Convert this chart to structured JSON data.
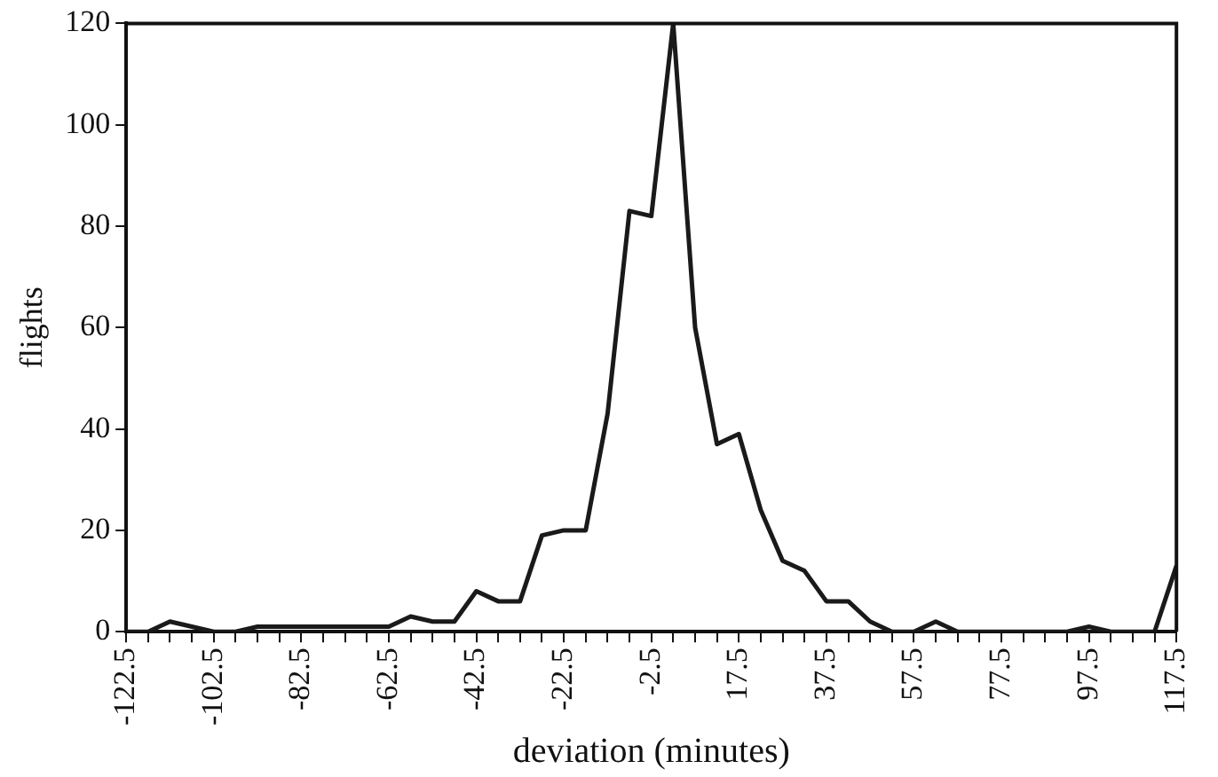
{
  "chart_data": {
    "type": "line",
    "xlabel": "deviation (minutes)",
    "ylabel": "flights",
    "x": [
      -122.5,
      -117.5,
      -112.5,
      -107.5,
      -102.5,
      -97.5,
      -92.5,
      -87.5,
      -82.5,
      -77.5,
      -72.5,
      -67.5,
      -62.5,
      -57.5,
      -52.5,
      -47.5,
      -42.5,
      -37.5,
      -32.5,
      -27.5,
      -22.5,
      -17.5,
      -12.5,
      -7.5,
      -2.5,
      2.5,
      7.5,
      12.5,
      17.5,
      22.5,
      27.5,
      32.5,
      37.5,
      42.5,
      47.5,
      52.5,
      57.5,
      62.5,
      67.5,
      72.5,
      77.5,
      82.5,
      87.5,
      92.5,
      97.5,
      102.5,
      107.5,
      112.5,
      117.5
    ],
    "series": [
      {
        "color": "#1a1a1a",
        "values": [
          0,
          0,
          2,
          1,
          0,
          0,
          1,
          1,
          1,
          1,
          1,
          1,
          1,
          3,
          2,
          2,
          8,
          6,
          6,
          19,
          20,
          20,
          43,
          83,
          82,
          120,
          60,
          37,
          39,
          24,
          14,
          12,
          6,
          6,
          2,
          0,
          0,
          2,
          0,
          0,
          0,
          0,
          0,
          0,
          1,
          0,
          0,
          0,
          13
        ]
      }
    ],
    "xlim": [
      -122.5,
      117.5
    ],
    "xticks": [
      -122.5,
      {
        "value": -117.5,
        "label": null
      },
      {
        "value": -112.5,
        "label": null
      },
      {
        "value": -107.5,
        "label": null
      },
      -102.5,
      {
        "value": -97.5,
        "label": null
      },
      {
        "value": -92.5,
        "label": null
      },
      {
        "value": -87.5,
        "label": null
      },
      -82.5,
      {
        "value": -77.5,
        "label": null
      },
      {
        "value": -72.5,
        "label": null
      },
      {
        "value": -67.5,
        "label": null
      },
      -62.5,
      {
        "value": -57.5,
        "label": null
      },
      {
        "value": -52.5,
        "label": null
      },
      {
        "value": -47.5,
        "label": null
      },
      -42.5,
      {
        "value": -37.5,
        "label": null
      },
      {
        "value": -32.5,
        "label": null
      },
      {
        "value": -27.5,
        "label": null
      },
      -22.5,
      {
        "value": -17.5,
        "label": null
      },
      {
        "value": -12.5,
        "label": null
      },
      {
        "value": -7.5,
        "label": null
      },
      -2.5,
      {
        "value": 2.5,
        "label": null
      },
      {
        "value": 7.5,
        "label": null
      },
      {
        "value": 12.5,
        "label": null
      },
      17.5,
      {
        "value": 22.5,
        "label": null
      },
      {
        "value": 27.5,
        "label": null
      },
      {
        "value": 32.5,
        "label": null
      },
      37.5,
      {
        "value": 42.5,
        "label": null
      },
      {
        "value": 47.5,
        "label": null
      },
      {
        "value": 52.5,
        "label": null
      },
      57.5,
      {
        "value": 62.5,
        "label": null
      },
      {
        "value": 67.5,
        "label": null
      },
      {
        "value": 72.5,
        "label": null
      },
      77.5,
      {
        "value": 82.5,
        "label": null
      },
      {
        "value": 87.5,
        "label": null
      },
      {
        "value": 92.5,
        "label": null
      },
      97.5,
      {
        "value": 102.5,
        "label": null
      },
      {
        "value": 107.5,
        "label": null
      },
      {
        "value": 112.5,
        "label": null
      },
      117.5
    ],
    "ylim": [
      0,
      120
    ],
    "yticks": [
      0,
      20,
      40,
      60,
      80,
      100,
      120
    ],
    "marker": "none",
    "line_style": "solid",
    "grid": false,
    "legend": false
  }
}
